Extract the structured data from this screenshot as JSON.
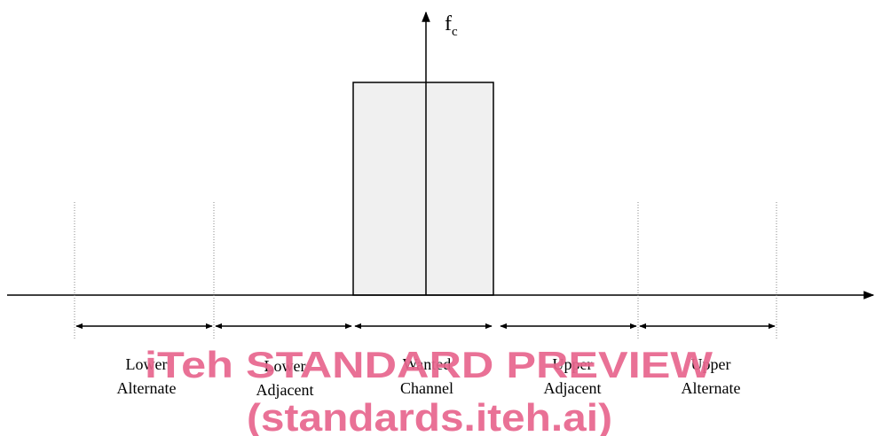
{
  "diagram": {
    "center_marker": {
      "label": "f",
      "subscript": "c"
    },
    "bands": [
      {
        "line1": "Lower",
        "line2": "Alternate"
      },
      {
        "line1": "Lower",
        "line2": "Adjacent"
      },
      {
        "line1": "Wanted",
        "line2": "Channel"
      },
      {
        "line1": "Upper",
        "line2": "Adjacent"
      },
      {
        "line1": "Upper",
        "line2": "Alternate"
      }
    ]
  },
  "watermark": {
    "line1": "iTeh STANDARD PREVIEW",
    "line2": "(standards.iteh.ai)"
  },
  "colors": {
    "stroke": "#000000",
    "channel_fill": "#f0f0f0",
    "watermark": "#e8668e"
  }
}
